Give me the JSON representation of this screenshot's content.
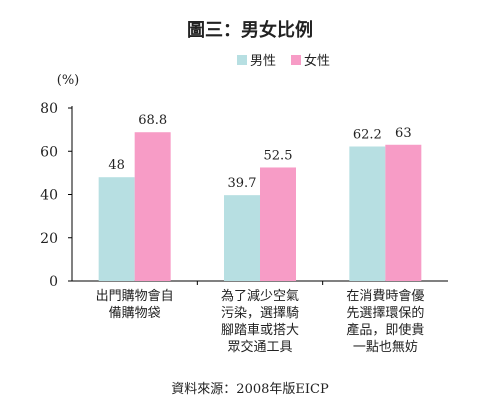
{
  "chart_data": {
    "type": "bar",
    "title": "圖三：男女比例",
    "ylabel": "(%)",
    "ylim": [
      0,
      80
    ],
    "yticks": [
      0,
      20,
      40,
      60,
      80
    ],
    "categories": [
      "出門購物會自備購物袋",
      "為了減少空氣污染，選擇騎腳踏車或搭大眾交通工具",
      "在消費時會優先選擇環保的產品，即使貴一點也無妨"
    ],
    "category_lines": [
      [
        "出門購物會自",
        "備購物袋"
      ],
      [
        "為了減少空氣",
        "污染，選擇騎",
        "腳踏車或搭大",
        "眾交通工具"
      ],
      [
        "在消費時會優",
        "先選擇環保的",
        "產品，即使貴",
        "一點也無妨"
      ]
    ],
    "series": [
      {
        "name": "男性",
        "color": "#b7dfe2",
        "values": [
          48,
          39.7,
          62.2
        ]
      },
      {
        "name": "女性",
        "color": "#f79cc6",
        "values": [
          68.8,
          52.5,
          63
        ]
      }
    ],
    "data_labels": [
      [
        "48",
        "39.7",
        "62.2"
      ],
      [
        "68.8",
        "52.5",
        "63"
      ]
    ],
    "legend_position": "top-right",
    "grid": false
  },
  "source": "資料來源：2008年版EICP"
}
